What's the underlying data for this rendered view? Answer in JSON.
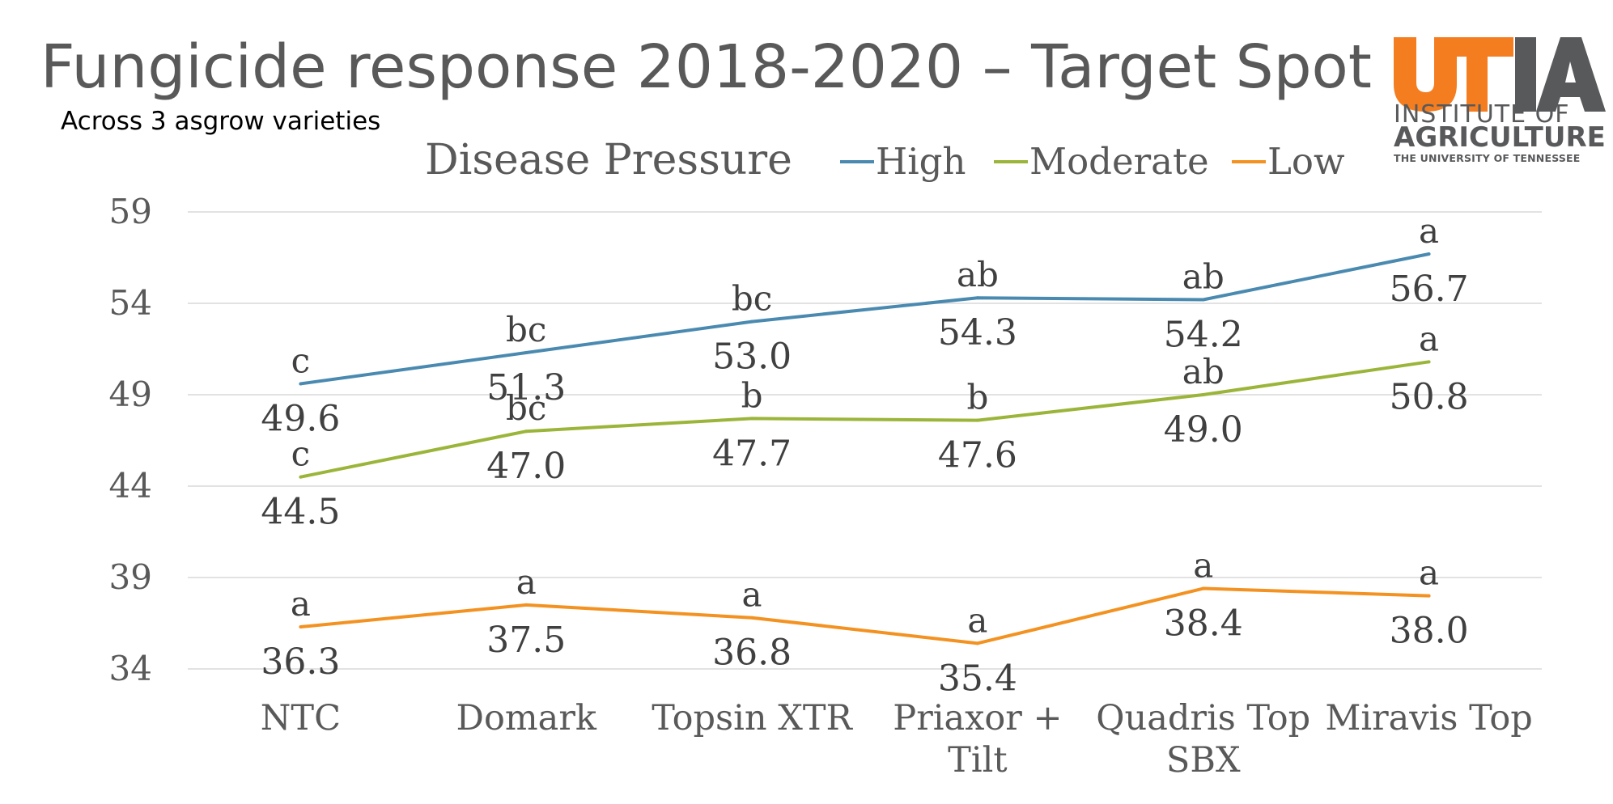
{
  "title": "Fungicide response 2018-2020 – Target Spot",
  "subtitle": "Across 3 asgrow varieties",
  "logo": {
    "mark": "UTIA",
    "line1": "INSTITUTE OF",
    "line2": "AGRICULTURE",
    "line3": "THE UNIVERSITY OF TENNESSEE",
    "orange": "#f47d20",
    "gray": "#58595b"
  },
  "chart_data": {
    "type": "line",
    "legend_title": "Disease Pressure",
    "legend_position": "top",
    "categories": [
      [
        "NTC"
      ],
      [
        "Domark"
      ],
      [
        "Topsin XTR"
      ],
      [
        "Priaxor +",
        "Tilt"
      ],
      [
        "Quadris Top",
        "SBX"
      ],
      [
        "Miravis Top"
      ]
    ],
    "yticks": [
      "59",
      "54",
      "49",
      "44",
      "39",
      "34"
    ],
    "ylim": [
      34,
      59
    ],
    "grid": true,
    "series": [
      {
        "name": "High",
        "color": "#4a8ab0",
        "values": [
          49.6,
          51.3,
          53.0,
          54.3,
          54.2,
          56.7
        ],
        "labels": [
          "49.6",
          "51.3",
          "53.0",
          "54.3",
          "54.2",
          "56.7"
        ],
        "letters": [
          "c",
          "bc",
          "bc",
          "ab",
          "ab",
          "a"
        ]
      },
      {
        "name": "Moderate",
        "color": "#9bb53a",
        "values": [
          44.5,
          47.0,
          47.7,
          47.6,
          49.0,
          50.8
        ],
        "labels": [
          "44.5",
          "47.0",
          "47.7",
          "47.6",
          "49.0",
          "50.8"
        ],
        "letters": [
          "c",
          "bc",
          "b",
          "b",
          "ab",
          "a"
        ]
      },
      {
        "name": "Low",
        "color": "#f39221",
        "values": [
          36.3,
          37.5,
          36.8,
          35.4,
          38.4,
          38.0
        ],
        "labels": [
          "36.3",
          "37.5",
          "36.8",
          "35.4",
          "38.4",
          "38.0"
        ],
        "letters": [
          "a",
          "a",
          "a",
          "a",
          "a",
          "a"
        ]
      }
    ]
  }
}
